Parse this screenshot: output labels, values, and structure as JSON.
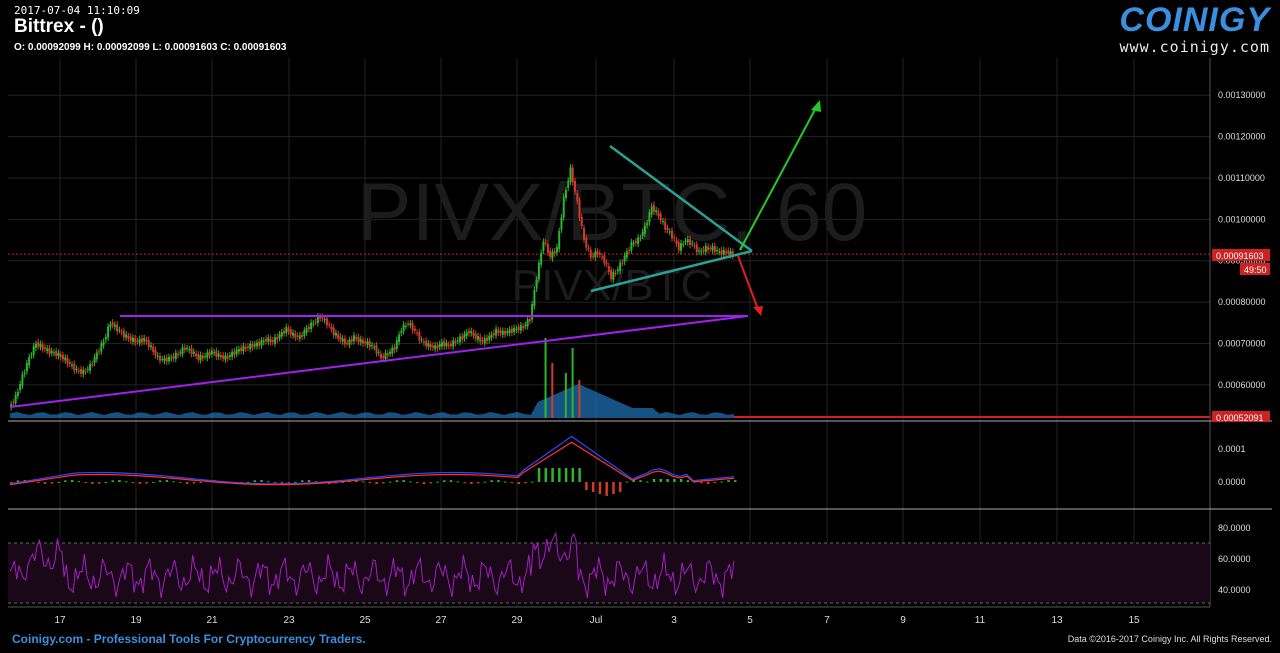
{
  "header": {
    "timestamp": "2017-07-04 11:10:09",
    "title": "Bittrex -  ()",
    "ohlc": "O: 0.00092099 H: 0.00092099 L: 0.00091603 C: 0.00091603"
  },
  "logo": {
    "word": "COINIGY",
    "url": "www.coinigy.com"
  },
  "footer": {
    "left": "Coinigy.com - Professional Tools For Cryptocurrency Traders.",
    "right": "Data ©2016-2017 Coinigy Inc. All Rights Reserved."
  },
  "colors": {
    "background": "#000000",
    "grid": "#222222",
    "up_candle": "#2db52d",
    "down_candle": "#d23a2a",
    "triangle": "#2aa198",
    "support_line": "#a020f0",
    "arrow_up": "#22cc22",
    "arrow_down": "#e02020",
    "volume": "#1e6fb0",
    "price_line": "#cc2222",
    "macd_line": "#3344ff",
    "signal_line": "#ff3333",
    "rsi": "#a020c0",
    "brand": "#3b8fe0"
  },
  "chart_data": [
    {
      "type": "candlestick",
      "watermark": "PIVX/BTC, 60",
      "watermark_sub": "PIVX/BTC",
      "x_ticks": [
        "17",
        "19",
        "21",
        "23",
        "25",
        "27",
        "29",
        "Jul",
        "3",
        "5",
        "7",
        "9",
        "11",
        "13",
        "15"
      ],
      "y_ticks": [
        "0.00130000",
        "0.00120000",
        "0.00110000",
        "0.00100000",
        "0.00090000",
        "0.00080000",
        "0.00070000",
        "0.00060000"
      ],
      "ylim": [
        0.000515,
        0.00139
      ],
      "last_price": "0.00091603",
      "last_price_value": 0.00091603,
      "countdown": "49:50",
      "low_marker": "0.00052091",
      "low_marker_value": 0.00052091,
      "price_path": [
        [
          0,
          0.000545
        ],
        [
          1,
          0.00057
        ],
        [
          2,
          0.00062
        ],
        [
          3,
          0.000665
        ],
        [
          4,
          0.0007
        ],
        [
          5,
          0.00069
        ],
        [
          6,
          0.00068
        ],
        [
          7,
          0.000675
        ],
        [
          8,
          0.000665
        ],
        [
          9,
          0.00065
        ],
        [
          10,
          0.000635
        ],
        [
          11,
          0.00063
        ],
        [
          12,
          0.000645
        ],
        [
          13,
          0.000675
        ],
        [
          14,
          0.000705
        ],
        [
          15,
          0.00075
        ],
        [
          16,
          0.000735
        ],
        [
          17,
          0.00072
        ],
        [
          18,
          0.00071
        ],
        [
          19,
          0.000705
        ],
        [
          20,
          0.00071
        ],
        [
          21,
          0.00069
        ],
        [
          22,
          0.000665
        ],
        [
          23,
          0.00066
        ],
        [
          24,
          0.000665
        ],
        [
          25,
          0.000675
        ],
        [
          26,
          0.00069
        ],
        [
          27,
          0.00068
        ],
        [
          28,
          0.000665
        ],
        [
          29,
          0.00067
        ],
        [
          30,
          0.00068
        ],
        [
          31,
          0.00067
        ],
        [
          32,
          0.000665
        ],
        [
          33,
          0.000675
        ],
        [
          34,
          0.000685
        ],
        [
          35,
          0.00069
        ],
        [
          36,
          0.000695
        ],
        [
          37,
          0.0007
        ],
        [
          38,
          0.00071
        ],
        [
          39,
          0.000705
        ],
        [
          40,
          0.00072
        ],
        [
          41,
          0.000735
        ],
        [
          42,
          0.00072
        ],
        [
          43,
          0.000715
        ],
        [
          44,
          0.000735
        ],
        [
          45,
          0.00075
        ],
        [
          46,
          0.000765
        ],
        [
          47,
          0.00075
        ],
        [
          48,
          0.000725
        ],
        [
          49,
          0.00071
        ],
        [
          50,
          0.0007
        ],
        [
          51,
          0.000715
        ],
        [
          52,
          0.000705
        ],
        [
          53,
          0.0007
        ],
        [
          54,
          0.00069
        ],
        [
          55,
          0.000665
        ],
        [
          56,
          0.000675
        ],
        [
          57,
          0.00069
        ],
        [
          58,
          0.000735
        ],
        [
          59,
          0.00075
        ],
        [
          60,
          0.00073
        ],
        [
          61,
          0.000705
        ],
        [
          62,
          0.000695
        ],
        [
          63,
          0.00069
        ],
        [
          64,
          0.0007
        ],
        [
          65,
          0.000695
        ],
        [
          66,
          0.000705
        ],
        [
          67,
          0.000715
        ],
        [
          68,
          0.00073
        ],
        [
          69,
          0.000715
        ],
        [
          70,
          0.000705
        ],
        [
          71,
          0.000715
        ],
        [
          72,
          0.00073
        ],
        [
          73,
          0.000725
        ],
        [
          74,
          0.00073
        ],
        [
          75,
          0.000735
        ],
        [
          76,
          0.00074
        ],
        [
          77,
          0.00076
        ],
        [
          78,
          0.00086
        ],
        [
          79,
          0.00095
        ],
        [
          80,
          0.00091
        ],
        [
          81,
          0.00093
        ],
        [
          82,
          0.00105
        ],
        [
          83,
          0.00112
        ],
        [
          84,
          0.00104
        ],
        [
          85,
          0.00095
        ],
        [
          86,
          0.00091
        ],
        [
          87,
          0.00092
        ],
        [
          88,
          0.0009
        ],
        [
          89,
          0.00086
        ],
        [
          90,
          0.00088
        ],
        [
          91,
          0.00091
        ],
        [
          92,
          0.00094
        ],
        [
          93,
          0.00095
        ],
        [
          94,
          0.00098
        ],
        [
          95,
          0.00103
        ],
        [
          96,
          0.00101
        ],
        [
          97,
          0.00098
        ],
        [
          98,
          0.00096
        ],
        [
          99,
          0.00093
        ],
        [
          100,
          0.00095
        ],
        [
          101,
          0.00094
        ],
        [
          102,
          0.00092
        ],
        [
          103,
          0.00093
        ],
        [
          104,
          0.00093
        ],
        [
          105,
          0.00092
        ],
        [
          106,
          0.000921
        ],
        [
          107,
          0.000916
        ]
      ],
      "macd_yticks": [
        "0.0001",
        "0.0000"
      ],
      "rsi_yticks": [
        "80.0000",
        "60.0000",
        "40.0000"
      ]
    }
  ]
}
